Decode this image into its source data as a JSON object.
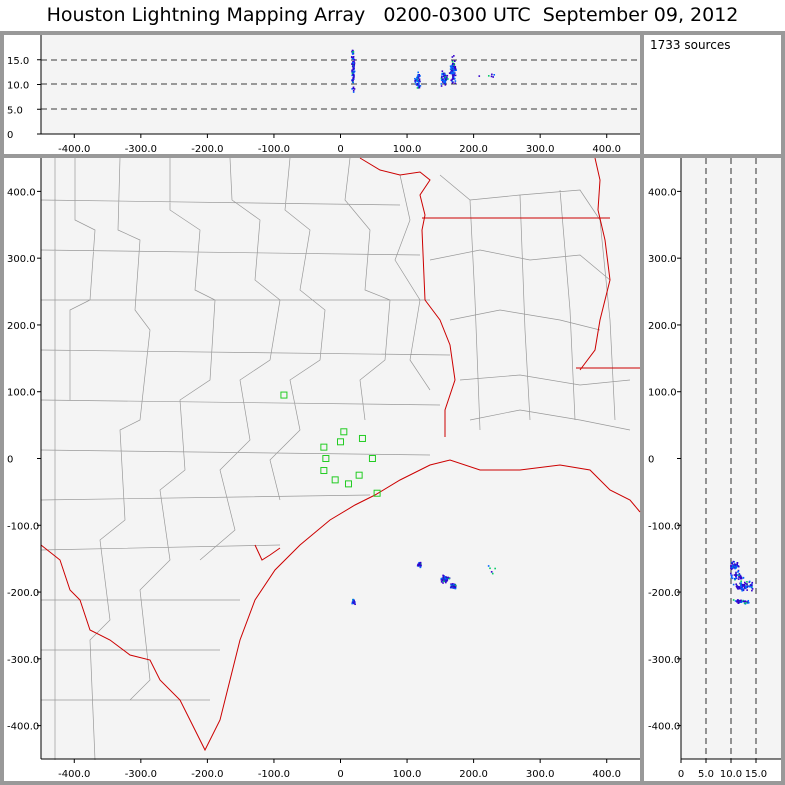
{
  "title": "Houston Lightning Mapping Array   0200-0300 UTC  September 09, 2012",
  "sources_label": "1733 sources",
  "colors": {
    "plot_bg": "#f4f4f4",
    "frame": "#999999",
    "county_lines": "#999999",
    "state_and_coast": "#cc0000",
    "stations": "#22cc22",
    "sources_low": "#3300cc",
    "sources_mid": "#0066ff",
    "sources_high": "#00cc66"
  },
  "chart_data": [
    {
      "panel": "altitude-vs-east-west",
      "type": "scatter",
      "x_ticks": [
        "-400.0",
        "-300.0",
        "-200.0",
        "-100.0",
        "0",
        "100.0",
        "200.0",
        "300.0",
        "400.0"
      ],
      "y_ticks": [
        "0",
        "5.0",
        "10.0",
        "15.0"
      ],
      "xlim": [
        -450,
        450
      ],
      "ylim": [
        0,
        20
      ],
      "dashed_lines_y": [
        5,
        10,
        15
      ],
      "clusters": [
        {
          "x": 18,
          "y": 13,
          "dx": 3,
          "dy": 6,
          "n": 90
        },
        {
          "x": 115,
          "y": 11,
          "dx": 5,
          "dy": 2,
          "n": 50
        },
        {
          "x": 155,
          "y": 11.5,
          "dx": 8,
          "dy": 2,
          "n": 60
        },
        {
          "x": 168,
          "y": 13,
          "dx": 6,
          "dy": 3.5,
          "n": 90
        },
        {
          "x": 215,
          "y": 12,
          "dx": 25,
          "dy": 1.5,
          "n": 6
        }
      ]
    },
    {
      "panel": "plan-view-map",
      "type": "scatter",
      "x_ticks": [
        "-400.0",
        "-300.0",
        "-200.0",
        "-100.0",
        "0",
        "100.0",
        "200.0",
        "300.0",
        "400.0"
      ],
      "y_ticks": [
        "400.0",
        "300.0",
        "200.0",
        "100.0",
        "0",
        "-100.0",
        "-200.0",
        "-300.0",
        "-400.0"
      ],
      "xlim": [
        -450,
        450
      ],
      "ylim": [
        -450,
        450
      ],
      "stations": [
        {
          "x": -85,
          "y": 95
        },
        {
          "x": -25,
          "y": 17
        },
        {
          "x": 5,
          "y": 40
        },
        {
          "x": 33,
          "y": 30
        },
        {
          "x": -22,
          "y": 0
        },
        {
          "x": 0,
          "y": 25
        },
        {
          "x": 48,
          "y": 0
        },
        {
          "x": -25,
          "y": -18
        },
        {
          "x": -8,
          "y": -32
        },
        {
          "x": 28,
          "y": -25
        },
        {
          "x": 12,
          "y": -38
        },
        {
          "x": 55,
          "y": -52
        }
      ],
      "clusters": [
        {
          "x": 18,
          "y": -213,
          "dx": 4,
          "dy": 5,
          "n": 30
        },
        {
          "x": 117,
          "y": -158,
          "dx": 4,
          "dy": 6,
          "n": 30
        },
        {
          "x": 155,
          "y": -180,
          "dx": 10,
          "dy": 8,
          "n": 60
        },
        {
          "x": 168,
          "y": -190,
          "dx": 6,
          "dy": 5,
          "n": 70
        },
        {
          "x": 225,
          "y": -165,
          "dx": 18,
          "dy": 10,
          "n": 5
        }
      ]
    },
    {
      "panel": "north-south-vs-altitude",
      "type": "scatter",
      "x_ticks": [
        "0",
        "5.0",
        "10.0",
        "15.0"
      ],
      "y_ticks": [
        "400.0",
        "300.0",
        "200.0",
        "100.0",
        "0",
        "-100.0",
        "-200.0",
        "-300.0",
        "-400.0"
      ],
      "xlim": [
        0,
        20
      ],
      "ylim": [
        -450,
        450
      ],
      "dashed_lines_x": [
        5,
        10,
        15
      ],
      "clusters": [
        {
          "x": 10.5,
          "y": -160,
          "dx": 1.2,
          "dy": 8,
          "n": 50
        },
        {
          "x": 12.5,
          "y": -190,
          "dx": 2.5,
          "dy": 8,
          "n": 90
        },
        {
          "x": 12,
          "y": -213,
          "dx": 2.5,
          "dy": 4,
          "n": 40
        },
        {
          "x": 11,
          "y": -175,
          "dx": 2,
          "dy": 10,
          "n": 40
        }
      ]
    }
  ]
}
